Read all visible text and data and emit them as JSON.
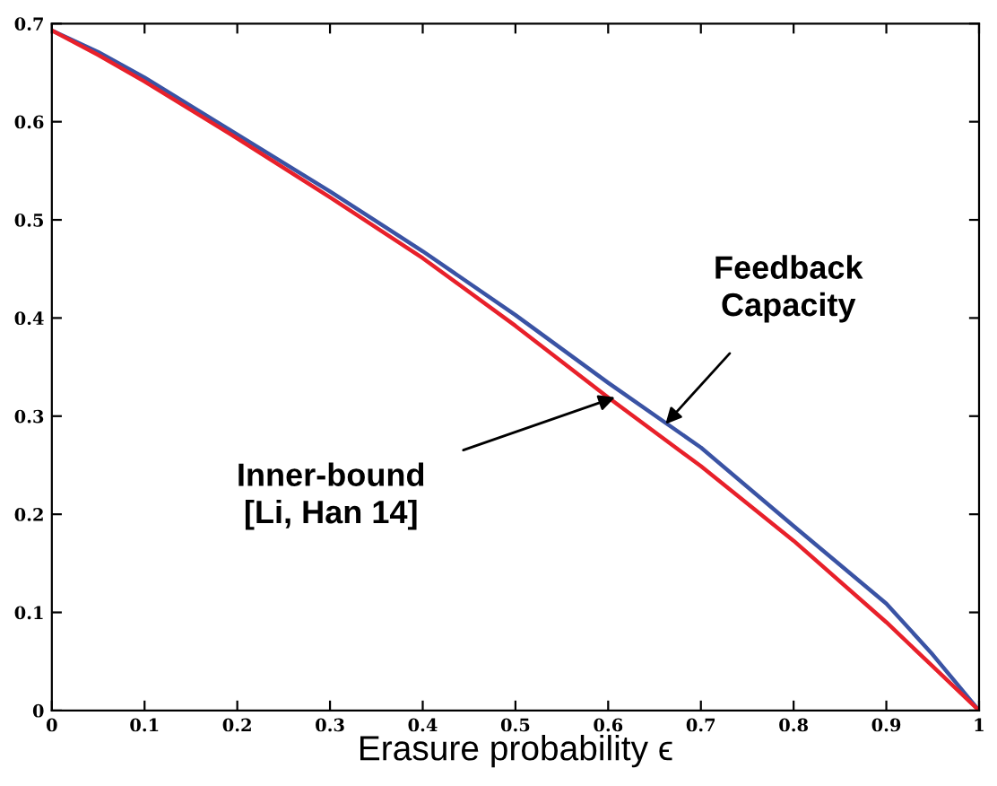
{
  "chart_data": {
    "type": "line",
    "xlabel": "Erasure probability ϵ",
    "x": [
      0,
      0.05,
      0.1,
      0.2,
      0.3,
      0.4,
      0.5,
      0.6,
      0.7,
      0.8,
      0.9,
      0.95,
      1
    ],
    "series": [
      {
        "color": "#3a53a4",
        "values": [
          0.693,
          0.671,
          0.645,
          0.587,
          0.529,
          0.468,
          0.403,
          0.334,
          0.268,
          0.188,
          0.109,
          0.057,
          0
        ]
      },
      {
        "color": "#e8202a",
        "values": [
          0.693,
          0.668,
          0.641,
          0.583,
          0.523,
          0.461,
          0.392,
          0.319,
          0.249,
          0.173,
          0.09,
          0.045,
          0
        ]
      }
    ],
    "annotations": [
      {
        "text": "Feedback\nCapacity",
        "x": 0.66,
        "y": 0.29
      },
      {
        "text": "Inner-bound\n[Li, Han 14]",
        "x": 0.61,
        "y": 0.32
      }
    ],
    "xlim": [
      0,
      1
    ],
    "ylim": [
      0,
      0.7
    ],
    "xticks": [
      0,
      0.1,
      0.2,
      0.3,
      0.4,
      0.5,
      0.6,
      0.7,
      0.8,
      0.9,
      1
    ],
    "yticks": [
      0,
      0.1,
      0.2,
      0.3,
      0.4,
      0.5,
      0.6,
      0.7
    ],
    "grid": false,
    "legend": false,
    "marker": "none",
    "line_style": "solid"
  }
}
